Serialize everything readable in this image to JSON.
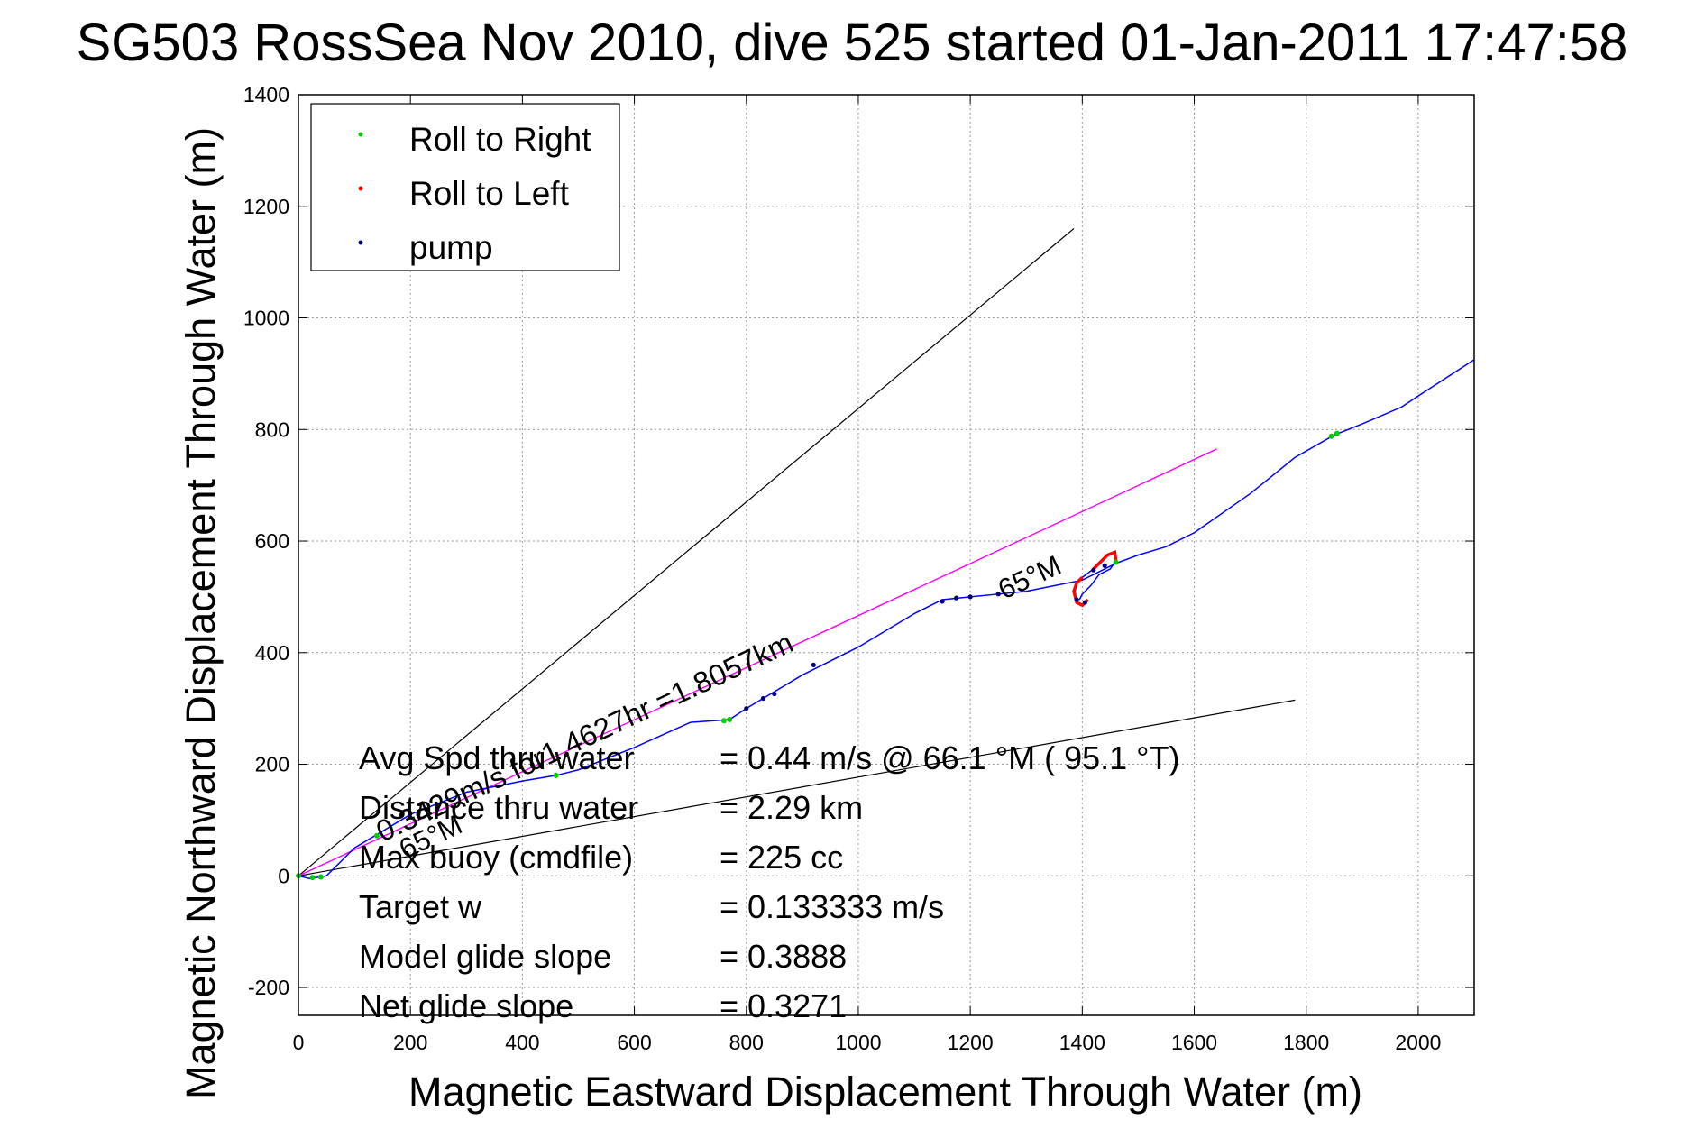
{
  "chart_data": {
    "type": "line",
    "title": "SG503 RossSea Nov 2010, dive 525 started 01-Jan-2011 17:47:58",
    "xlabel": "Magnetic Eastward Displacement Through Water (m)",
    "ylabel": "Magnetic Northward Displacement Through Water (m)",
    "xlim": [
      0,
      2100
    ],
    "ylim": [
      -250,
      1400
    ],
    "xticks": [
      0,
      200,
      400,
      600,
      800,
      1000,
      1200,
      1400,
      1600,
      1800,
      2000
    ],
    "yticks": [
      -200,
      0,
      200,
      400,
      600,
      800,
      1000,
      1200,
      1400
    ],
    "grid": true,
    "legend_position": "top-left",
    "legend": [
      {
        "label": "Roll to Right",
        "color": "#00cc00"
      },
      {
        "label": "Roll to Left",
        "color": "#ff0000"
      },
      {
        "label": "pump",
        "color": "#000080"
      }
    ],
    "track": {
      "color": "#0000ff",
      "x": [
        0,
        20,
        50,
        80,
        100,
        150,
        200,
        300,
        400,
        460,
        500,
        600,
        700,
        770,
        800,
        900,
        1000,
        1100,
        1150,
        1200,
        1250,
        1300,
        1350,
        1400,
        1430,
        1460,
        1500,
        1550,
        1600,
        1700,
        1780,
        1850,
        1900,
        1970,
        2000,
        2100
      ],
      "y": [
        0,
        -5,
        0,
        30,
        50,
        80,
        110,
        150,
        170,
        180,
        190,
        230,
        275,
        280,
        300,
        360,
        410,
        470,
        495,
        500,
        505,
        510,
        520,
        530,
        545,
        560,
        575,
        590,
        615,
        685,
        750,
        790,
        810,
        840,
        860,
        925
      ]
    },
    "loop": {
      "x": [
        1410,
        1400,
        1390,
        1385,
        1390,
        1400,
        1420,
        1445,
        1458,
        1460,
        1450,
        1430,
        1415,
        1400,
        1395
      ],
      "y": [
        495,
        485,
        490,
        510,
        525,
        535,
        550,
        575,
        580,
        565,
        550,
        540,
        520,
        505,
        495
      ]
    },
    "heading_line": {
      "color": "#ff00ff",
      "x": [
        0,
        1640
      ],
      "y": [
        0,
        765
      ]
    },
    "guide_lines": [
      {
        "color": "#000000",
        "x": [
          0,
          1385
        ],
        "y": [
          0,
          1160
        ]
      },
      {
        "color": "#000000",
        "x": [
          0,
          1780
        ],
        "y": [
          0,
          315
        ]
      }
    ],
    "annotations": [
      {
        "text": "0.3429m/s for1.4627hr =1.8057km",
        "x": 150,
        "y": 60,
        "angle": -25
      },
      {
        "text": "65°M",
        "x": 190,
        "y": 30,
        "angle": -25
      },
      {
        "text": "65°M",
        "x": 1260,
        "y": 495,
        "angle": -25
      }
    ],
    "stats": [
      {
        "label": "Avg Spd thru water",
        "value": "=  0.44 m/s @  66.1 °M ( 95.1 °T)"
      },
      {
        "label": "Distance thru water",
        "value": "=  2.29 km"
      },
      {
        "label": "Max buoy (cmdfile)",
        "value": "= 225 cc"
      },
      {
        "label": "Target w",
        "value": "= 0.133333 m/s"
      },
      {
        "label": "Model glide slope",
        "value": "= 0.3888"
      },
      {
        "label": "Net glide slope",
        "value": "= 0.3271"
      }
    ]
  }
}
